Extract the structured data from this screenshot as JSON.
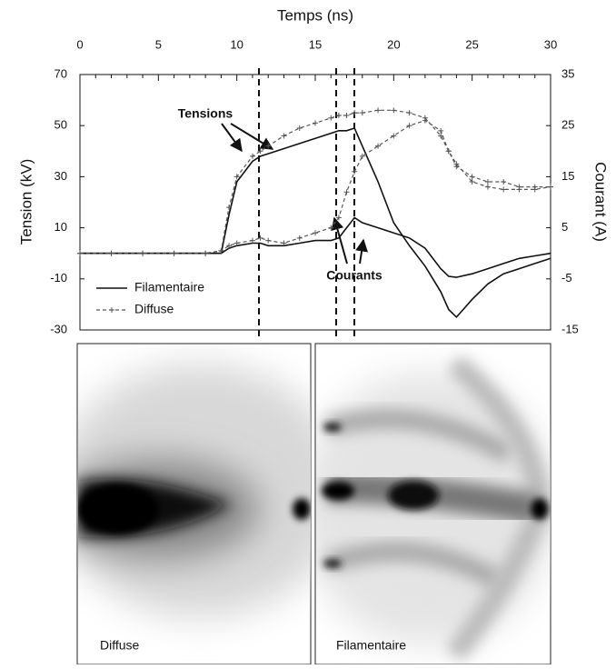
{
  "chart_data": {
    "type": "line",
    "title": "Temps (ns)",
    "ylabel": "Tension (kV)",
    "y2label": "Courant (A)",
    "x": [
      0,
      2,
      4,
      6,
      8,
      9,
      9.5,
      10,
      11,
      11.5,
      12,
      13,
      14,
      15,
      16,
      16.5,
      17,
      17.5,
      18,
      19,
      20,
      21,
      22,
      23,
      23.5,
      24,
      25,
      26,
      27,
      28,
      29,
      30
    ],
    "xlim": [
      0,
      30
    ],
    "xticks": [
      0,
      5,
      10,
      15,
      20,
      25,
      30
    ],
    "ylim": [
      -30,
      70
    ],
    "yticks": [
      -30,
      -10,
      10,
      30,
      50,
      70
    ],
    "y2lim": [
      -15,
      35
    ],
    "y2ticks": [
      -15,
      -5,
      5,
      15,
      25,
      35
    ],
    "legend": "lower left",
    "series": [
      {
        "name": "Filamentaire",
        "color": "#111111",
        "style": "solid",
        "values": [
          0,
          0,
          0,
          0,
          0,
          0,
          15,
          28,
          36,
          38,
          39,
          41,
          43,
          45,
          47,
          48,
          48,
          49,
          42,
          28,
          12,
          3,
          -5,
          -15,
          -22,
          -25,
          -18,
          -12,
          -8,
          -6,
          -4,
          -2
        ]
      },
      {
        "name": "Diffuse",
        "color": "#555555",
        "style": "dashed",
        "values": [
          0,
          0,
          0,
          0,
          0,
          1,
          18,
          30,
          38,
          40,
          42,
          46,
          49,
          51,
          53,
          54,
          54,
          55,
          55,
          56,
          56,
          55,
          53,
          46,
          40,
          35,
          28,
          26,
          25,
          25,
          25,
          26
        ]
      },
      {
        "name": "Filamentaire",
        "color": "#111111",
        "style": "solid",
        "axis": "y2",
        "values": [
          0,
          0,
          0,
          0,
          0,
          0,
          1,
          1.5,
          2,
          2,
          1.5,
          1.5,
          2,
          2.5,
          2.5,
          3,
          5,
          7,
          6,
          5,
          4,
          3,
          1,
          -3,
          -4.5,
          -4.7,
          -4,
          -3,
          -2,
          -1,
          -0.5,
          0
        ]
      },
      {
        "name": "Diffuse",
        "color": "#555555",
        "style": "dashed",
        "axis": "y2",
        "values": [
          0,
          0,
          0,
          0,
          0,
          0.5,
          1.5,
          2,
          2.5,
          3,
          2.5,
          2,
          3,
          4,
          5,
          7,
          12,
          16,
          19,
          21,
          23,
          25,
          26,
          24,
          20,
          17,
          15,
          14,
          14,
          13,
          13,
          13
        ]
      }
    ],
    "annotations": [
      "Tensions",
      "Courants"
    ]
  },
  "images": {
    "labels": [
      "Diffuse",
      "Filamentaire"
    ]
  }
}
